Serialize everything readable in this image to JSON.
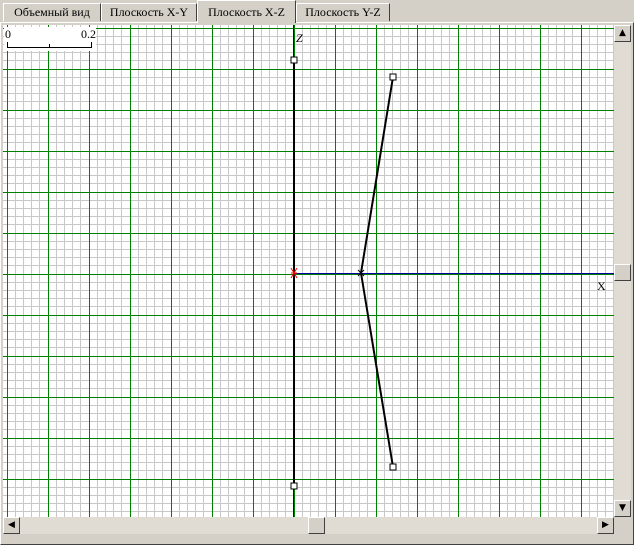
{
  "tabs": [
    {
      "label": "Объемный вид",
      "active": false
    },
    {
      "label": "Плоскость X-Y",
      "active": false
    },
    {
      "label": "Плоскость X-Z",
      "active": true
    },
    {
      "label": "Плоскость Y-Z",
      "active": false
    }
  ],
  "scale_bar": {
    "start_label": "0",
    "end_label": "0.2"
  },
  "axes": {
    "z_label": "Z",
    "x_label": "X"
  },
  "colors": {
    "minor_grid": "#c8c8c8",
    "major_grid": "#008000",
    "axis": "#0000a0",
    "wire": "#000000",
    "origin_marker": "#ff0000"
  },
  "icons": {
    "scroll_up": "arrow-up-icon",
    "scroll_down": "arrow-down-icon",
    "scroll_left": "arrow-left-icon",
    "scroll_right": "arrow-right-icon"
  }
}
